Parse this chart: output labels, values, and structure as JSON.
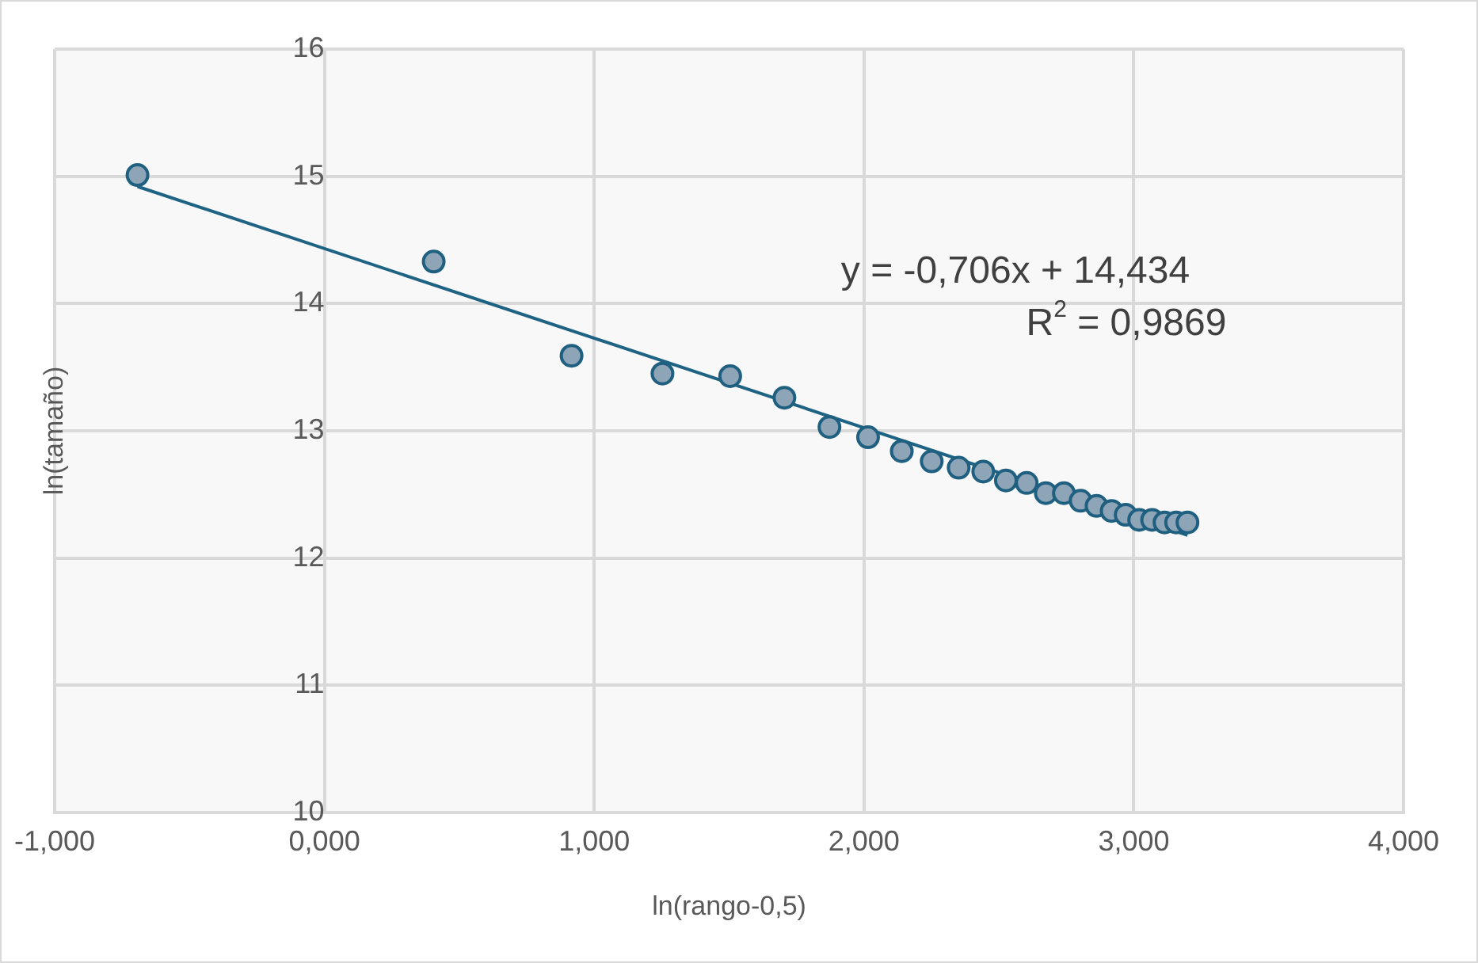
{
  "chart_data": {
    "type": "scatter",
    "xlabel": "ln(rango-0,5)",
    "ylabel": "ln(tamaño)",
    "xlim": [
      -1,
      4
    ],
    "xticks": [
      {
        "value": -1,
        "label": "-1,000"
      },
      {
        "value": 0,
        "label": "0,000"
      },
      {
        "value": 1,
        "label": "1,000"
      },
      {
        "value": 2,
        "label": "2,000"
      },
      {
        "value": 3,
        "label": "3,000"
      },
      {
        "value": 4,
        "label": "4,000"
      }
    ],
    "ylim": [
      10,
      16
    ],
    "yticks": [
      10,
      11,
      12,
      13,
      14,
      15,
      16
    ],
    "grid": true,
    "legend": false,
    "marker": "circle",
    "annotations": [
      "y = -0,706x + 14,434",
      "R$^{2}$ = 0,9869"
    ],
    "series": [
      {
        "color": "#8ea5b8",
        "x": [
          -0.693,
          0.405,
          0.916,
          1.253,
          1.504,
          1.705,
          1.872,
          2.015,
          2.14,
          2.251,
          2.351,
          2.442,
          2.526,
          2.603,
          2.674,
          2.741,
          2.803,
          2.862,
          2.918,
          2.97,
          3.02,
          3.068,
          3.114,
          3.157,
          3.199
        ],
        "values": [
          15.01,
          14.33,
          13.59,
          13.45,
          13.43,
          13.26,
          13.03,
          12.95,
          12.84,
          12.76,
          12.71,
          12.68,
          12.61,
          12.59,
          12.51,
          12.51,
          12.45,
          12.41,
          12.37,
          12.34,
          12.3,
          12.3,
          12.28,
          12.28,
          12.28
        ]
      },
      {
        "type": "line",
        "color": "#1f6384",
        "marker": "none",
        "x": [
          -0.693,
          3.199
        ],
        "values": [
          14.92,
          12.18
        ]
      }
    ]
  }
}
